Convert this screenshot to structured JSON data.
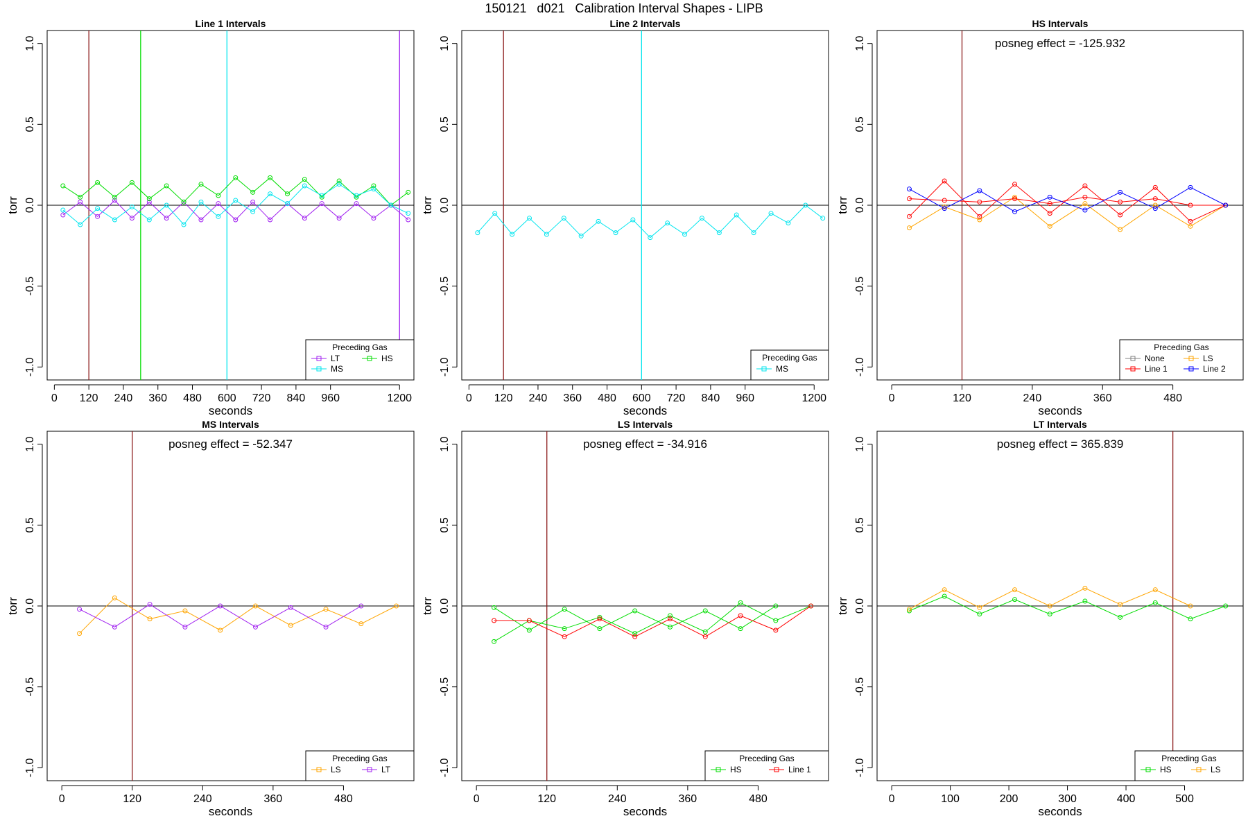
{
  "page_title": "150121   d021   Calibration Interval Shapes - LIPB",
  "colors": {
    "LT": "#a020f0",
    "HS": "#00dd00",
    "MS": "#00e5ee",
    "LS": "#ffa500",
    "Line 1": "#ff0000",
    "Line 2": "#0000ff",
    "None": "#808080",
    "vline": "#8b1a1a",
    "zero": "#000000"
  },
  "chart_data": [
    {
      "type": "line",
      "title": "Line 1 Intervals",
      "xlabel": "seconds",
      "ylabel": "torr",
      "xlim": [
        -25,
        1250
      ],
      "ylim": [
        -1.08,
        1.08
      ],
      "xticks": [
        0,
        120,
        240,
        360,
        480,
        600,
        720,
        840,
        960,
        1200
      ],
      "yticks": [
        -1.0,
        -0.5,
        0.0,
        0.5,
        1.0
      ],
      "vlines": [
        {
          "x": 120,
          "color_key": "vline"
        },
        {
          "x": 300,
          "color_key": "HS"
        },
        {
          "x": 600,
          "color_key": "MS"
        },
        {
          "x": 1200,
          "color_key": "LT"
        }
      ],
      "annotation": "",
      "legend": {
        "title": "Preceding Gas",
        "position": "bottom-right",
        "cols": 2,
        "entries": [
          "LT",
          "HS",
          "MS"
        ]
      },
      "series": [
        {
          "name": "LT",
          "x": [
            30,
            90,
            150,
            210,
            270,
            330,
            390,
            450,
            510,
            570,
            630,
            690,
            750,
            810,
            870,
            930,
            990,
            1050,
            1110,
            1170,
            1230
          ],
          "y": [
            -0.06,
            0.02,
            -0.07,
            0.03,
            -0.08,
            0.02,
            -0.08,
            0.02,
            -0.09,
            0.01,
            -0.09,
            0.02,
            -0.09,
            0.01,
            -0.08,
            0.01,
            -0.08,
            0.01,
            -0.08,
            0.0,
            -0.09
          ]
        },
        {
          "name": "HS",
          "x": [
            30,
            90,
            150,
            210,
            270,
            330,
            390,
            450,
            510,
            570,
            630,
            690,
            750,
            810,
            870,
            930,
            990,
            1050,
            1110,
            1170,
            1230
          ],
          "y": [
            0.12,
            0.05,
            0.14,
            0.05,
            0.14,
            0.04,
            0.12,
            0.02,
            0.13,
            0.06,
            0.17,
            0.08,
            0.17,
            0.07,
            0.16,
            0.05,
            0.15,
            0.05,
            0.12,
            0.0,
            0.08
          ]
        },
        {
          "name": "MS",
          "x": [
            30,
            90,
            150,
            210,
            270,
            330,
            390,
            450,
            510,
            570,
            630,
            690,
            750,
            810,
            870,
            930,
            990,
            1050,
            1110,
            1170,
            1230
          ],
          "y": [
            -0.03,
            -0.12,
            -0.02,
            -0.09,
            -0.01,
            -0.09,
            -0.0,
            -0.12,
            0.02,
            -0.07,
            0.03,
            -0.04,
            0.07,
            0.01,
            0.12,
            0.06,
            0.13,
            0.06,
            0.1,
            0.0,
            -0.05
          ]
        }
      ]
    },
    {
      "type": "line",
      "title": "Line 2 Intervals",
      "xlabel": "seconds",
      "ylabel": "torr",
      "xlim": [
        -25,
        1250
      ],
      "ylim": [
        -1.08,
        1.08
      ],
      "xticks": [
        0,
        120,
        240,
        360,
        480,
        600,
        720,
        840,
        960,
        1200
      ],
      "yticks": [
        -1.0,
        -0.5,
        0.0,
        0.5,
        1.0
      ],
      "vlines": [
        {
          "x": 120,
          "color_key": "vline"
        },
        {
          "x": 600,
          "color_key": "MS"
        }
      ],
      "annotation": "",
      "legend": {
        "title": "Preceding Gas",
        "position": "bottom-right",
        "cols": 1,
        "entries": [
          "MS"
        ]
      },
      "series": [
        {
          "name": "MS",
          "x": [
            30,
            90,
            150,
            210,
            270,
            330,
            390,
            450,
            510,
            570,
            630,
            690,
            750,
            810,
            870,
            930,
            990,
            1050,
            1110,
            1170,
            1230
          ],
          "y": [
            -0.17,
            -0.05,
            -0.18,
            -0.08,
            -0.18,
            -0.08,
            -0.19,
            -0.1,
            -0.17,
            -0.09,
            -0.2,
            -0.11,
            -0.18,
            -0.08,
            -0.17,
            -0.06,
            -0.17,
            -0.05,
            -0.11,
            0.0,
            -0.08
          ]
        }
      ]
    },
    {
      "type": "line",
      "title": "HS Intervals",
      "xlabel": "seconds",
      "ylabel": "torr",
      "xlim": [
        -25,
        600
      ],
      "ylim": [
        -1.08,
        1.08
      ],
      "xticks": [
        0,
        120,
        240,
        360,
        480
      ],
      "yticks": [
        -1.0,
        -0.5,
        0.0,
        0.5,
        1.0
      ],
      "vlines": [
        {
          "x": 120,
          "color_key": "vline"
        }
      ],
      "annotation": "posneg effect = -125.932",
      "legend": {
        "title": "Preceding Gas",
        "position": "bottom-right",
        "cols": 2,
        "entries": [
          "None",
          "LS",
          "Line 1",
          "Line 2"
        ]
      },
      "series": [
        {
          "name": "LS",
          "x": [
            30,
            90,
            150,
            210,
            270,
            330,
            390,
            450,
            510,
            570
          ],
          "y": [
            -0.14,
            -0.01,
            -0.09,
            0.05,
            -0.13,
            0.01,
            -0.15,
            0.0,
            -0.13,
            0.0
          ]
        },
        {
          "name": "Line 1",
          "x": [
            30,
            90,
            150,
            210,
            270,
            330,
            390,
            450,
            510,
            570
          ],
          "y": [
            -0.07,
            0.15,
            -0.07,
            0.13,
            -0.05,
            0.12,
            -0.06,
            0.11,
            -0.1,
            0.0
          ]
        },
        {
          "name": "Line 1",
          "x": [
            30,
            90,
            150,
            210,
            270,
            330,
            390,
            450,
            510,
            570
          ],
          "y": [
            0.04,
            0.03,
            0.02,
            0.04,
            0.01,
            0.05,
            0.02,
            0.04,
            0.0,
            0.0
          ]
        },
        {
          "name": "Line 2",
          "x": [
            30,
            90,
            150,
            210,
            270,
            330,
            390,
            450,
            510,
            570
          ],
          "y": [
            0.1,
            -0.02,
            0.09,
            -0.04,
            0.05,
            -0.03,
            0.08,
            -0.02,
            0.11,
            0.0
          ]
        }
      ]
    },
    {
      "type": "line",
      "title": "MS Intervals",
      "xlabel": "seconds",
      "ylabel": "torr",
      "xlim": [
        -25,
        600
      ],
      "ylim": [
        -1.08,
        1.08
      ],
      "xticks": [
        0,
        120,
        240,
        360,
        480
      ],
      "yticks": [
        -1.0,
        -0.5,
        0.0,
        0.5,
        1.0
      ],
      "vlines": [
        {
          "x": 120,
          "color_key": "vline"
        }
      ],
      "annotation": "posneg effect = -52.347",
      "legend": {
        "title": "Preceding Gas",
        "position": "bottom-right",
        "cols": 2,
        "entries": [
          "LS",
          "LT"
        ]
      },
      "series": [
        {
          "name": "LS",
          "x": [
            30,
            90,
            150,
            210,
            270,
            330,
            390,
            450,
            510,
            570
          ],
          "y": [
            -0.17,
            0.05,
            -0.08,
            -0.03,
            -0.15,
            0.0,
            -0.12,
            -0.02,
            -0.11,
            0.0
          ]
        },
        {
          "name": "LT",
          "x": [
            30,
            90,
            150,
            210,
            270,
            330,
            390,
            450,
            510
          ],
          "y": [
            -0.02,
            -0.13,
            0.01,
            -0.13,
            0.0,
            -0.13,
            -0.01,
            -0.13,
            0.0
          ]
        }
      ]
    },
    {
      "type": "line",
      "title": "LS Intervals",
      "xlabel": "seconds",
      "ylabel": "torr",
      "xlim": [
        -25,
        600
      ],
      "ylim": [
        -1.08,
        1.08
      ],
      "xticks": [
        0,
        120,
        240,
        360,
        480
      ],
      "yticks": [
        -1.0,
        -0.5,
        0.0,
        0.5,
        1.0
      ],
      "vlines": [
        {
          "x": 120,
          "color_key": "vline"
        }
      ],
      "annotation": "posneg effect = -34.916",
      "legend": {
        "title": "Preceding Gas",
        "position": "bottom-right",
        "cols": 2,
        "entries": [
          "HS",
          "Line 1"
        ]
      },
      "series": [
        {
          "name": "HS",
          "x": [
            30,
            90,
            150,
            210,
            270,
            330,
            390,
            450,
            510,
            570
          ],
          "y": [
            -0.22,
            -0.09,
            -0.14,
            -0.07,
            -0.17,
            -0.06,
            -0.16,
            0.02,
            -0.09,
            0.0
          ]
        },
        {
          "name": "HS",
          "x": [
            30,
            90,
            150,
            210,
            270,
            330,
            390,
            450,
            510
          ],
          "y": [
            -0.01,
            -0.15,
            -0.02,
            -0.14,
            -0.03,
            -0.13,
            -0.03,
            -0.14,
            0.0
          ]
        },
        {
          "name": "Line 1",
          "x": [
            30,
            90,
            150,
            210,
            270,
            330,
            390,
            450,
            510,
            570
          ],
          "y": [
            -0.09,
            -0.09,
            -0.19,
            -0.08,
            -0.19,
            -0.08,
            -0.19,
            -0.06,
            -0.15,
            0.0
          ]
        }
      ]
    },
    {
      "type": "line",
      "title": "LT Intervals",
      "xlabel": "seconds",
      "ylabel": "torr",
      "xlim": [
        -25,
        600
      ],
      "ylim": [
        -1.08,
        1.08
      ],
      "xticks": [
        0,
        100,
        200,
        300,
        400,
        500
      ],
      "yticks": [
        -1.0,
        -0.5,
        0.0,
        0.5,
        1.0
      ],
      "vlines": [
        {
          "x": 480,
          "color_key": "vline"
        }
      ],
      "annotation": "posneg effect = 365.839",
      "legend": {
        "title": "Preceding Gas",
        "position": "bottom-right",
        "cols": 2,
        "entries": [
          "HS",
          "LS"
        ]
      },
      "series": [
        {
          "name": "HS",
          "x": [
            30,
            90,
            150,
            210,
            270,
            330,
            390,
            450,
            510,
            570
          ],
          "y": [
            -0.03,
            0.06,
            -0.05,
            0.04,
            -0.05,
            0.03,
            -0.07,
            0.02,
            -0.08,
            0.0
          ]
        },
        {
          "name": "LS",
          "x": [
            30,
            90,
            150,
            210,
            270,
            330,
            390,
            450,
            510
          ],
          "y": [
            -0.02,
            0.1,
            -0.01,
            0.1,
            0.0,
            0.11,
            0.01,
            0.1,
            0.0
          ]
        }
      ]
    }
  ]
}
